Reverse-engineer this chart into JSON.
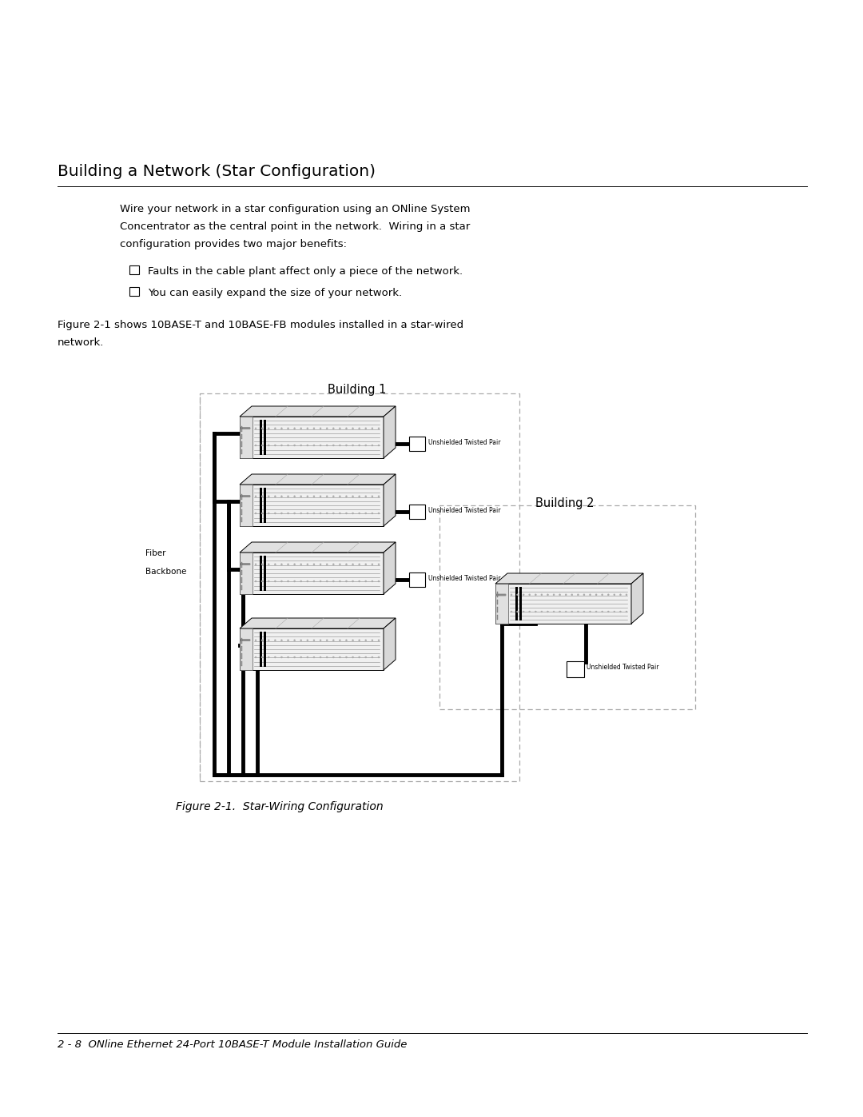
{
  "title": "Building a Network (Star Configuration)",
  "body_text_line1": "Wire your network in a star configuration using an ONline System",
  "body_text_line2": "Concentrator as the central point in the network.  Wiring in a star",
  "body_text_line3": "configuration provides two major benefits:",
  "bullet1": "Faults in the cable plant affect only a piece of the network.",
  "bullet2": "You can easily expand the size of your network.",
  "fig_intro1": "Figure 2-1 shows 10BASE-T and 10BASE-FB modules installed in a star-wired",
  "fig_intro2": "network.",
  "figure_caption": "Figure 2-1.  Star-Wiring Configuration",
  "footer": "2 - 8  ONline Ethernet 24-Port 10BASE-T Module Installation Guide",
  "building1_label": "Building 1",
  "building2_label": "Building 2",
  "fiber_line1": "Fiber",
  "fiber_line2": "Backbone",
  "utp_label": "Unshielded Twisted Pair",
  "bg_color": "#ffffff",
  "text_color": "#000000",
  "dash_color": "#aaaaaa"
}
